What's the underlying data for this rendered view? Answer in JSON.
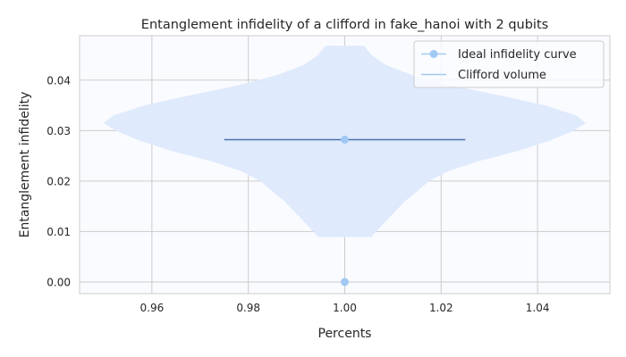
{
  "chart_data": {
    "type": "violin",
    "title": "Entanglement infidelity of a clifford in fake_hanoi with 2 qubits",
    "xlabel": "Percents",
    "ylabel": "Entanglement infidelity",
    "xlim": [
      0.945,
      1.055
    ],
    "ylim": [
      -0.0023,
      0.0488
    ],
    "xticks": [
      0.96,
      0.98,
      1.0,
      1.02,
      1.04
    ],
    "xtick_labels": [
      "0.96",
      "0.98",
      "1.00",
      "1.02",
      "1.04"
    ],
    "yticks": [
      0.0,
      0.01,
      0.02,
      0.03,
      0.04
    ],
    "ytick_labels": [
      "0.00",
      "0.01",
      "0.02",
      "0.03",
      "0.04"
    ],
    "grid": true,
    "legend_position": "top-right",
    "series": [
      {
        "name": "Ideal infidelity curve",
        "kind": "line-marker",
        "color": "#a1c9f4",
        "points": [
          {
            "x": 1.0,
            "y": 0.0
          },
          {
            "x": 1.0,
            "y": 0.0282
          }
        ]
      },
      {
        "name": "Clifford volume",
        "kind": "violin",
        "color": "#a1c9f4",
        "fill_color": "#dfeafc",
        "median_color": "#4c72b0",
        "position": 1.0,
        "median": 0.0282,
        "median_halfwidth": 0.025,
        "min": 0.0089,
        "max": 0.0468,
        "profile": [
          {
            "y": 0.0089,
            "half_width": 0.0055
          },
          {
            "y": 0.01,
            "half_width": 0.0065
          },
          {
            "y": 0.012,
            "half_width": 0.0085
          },
          {
            "y": 0.014,
            "half_width": 0.0105
          },
          {
            "y": 0.016,
            "half_width": 0.0125
          },
          {
            "y": 0.018,
            "half_width": 0.015
          },
          {
            "y": 0.02,
            "half_width": 0.0175
          },
          {
            "y": 0.022,
            "half_width": 0.0215
          },
          {
            "y": 0.024,
            "half_width": 0.028
          },
          {
            "y": 0.026,
            "half_width": 0.036
          },
          {
            "y": 0.028,
            "half_width": 0.0425
          },
          {
            "y": 0.03,
            "half_width": 0.0475
          },
          {
            "y": 0.0315,
            "half_width": 0.05
          },
          {
            "y": 0.033,
            "half_width": 0.048
          },
          {
            "y": 0.035,
            "half_width": 0.0415
          },
          {
            "y": 0.037,
            "half_width": 0.032
          },
          {
            "y": 0.039,
            "half_width": 0.022
          },
          {
            "y": 0.041,
            "half_width": 0.014
          },
          {
            "y": 0.043,
            "half_width": 0.0085
          },
          {
            "y": 0.045,
            "half_width": 0.0055
          },
          {
            "y": 0.0468,
            "half_width": 0.004
          }
        ]
      }
    ]
  }
}
